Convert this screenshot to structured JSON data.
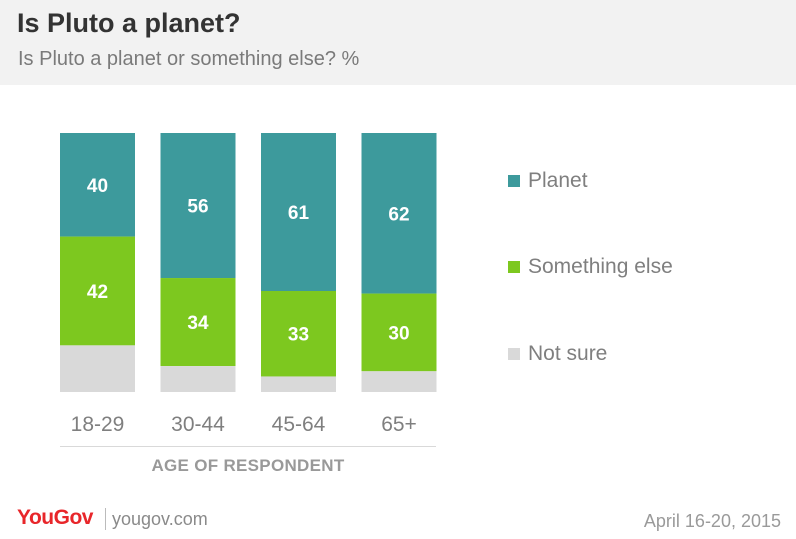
{
  "title": "Is Pluto a planet?",
  "subtitle": "Is Pluto a planet or something else? %",
  "colors": {
    "planet": "#3d9a9c",
    "something_else": "#7dc81f",
    "not_sure": "#d9d9d9",
    "header_bg": "#f2f2f2",
    "brand_red": "#e8262a"
  },
  "chart_data": {
    "type": "bar",
    "stacked": true,
    "categories": [
      "18-29",
      "30-44",
      "45-64",
      "65+"
    ],
    "series": [
      {
        "name": "Planet",
        "values": [
          40,
          56,
          61,
          62
        ],
        "labels": [
          "40",
          "56",
          "61",
          "62"
        ]
      },
      {
        "name": "Something else",
        "values": [
          42,
          34,
          33,
          30
        ],
        "labels": [
          "42",
          "34",
          "33",
          "30"
        ]
      },
      {
        "name": "Not sure",
        "values": [
          18,
          10,
          6,
          8
        ]
      }
    ],
    "xlabel": "AGE OF RESPONDENT",
    "ylim": [
      0,
      100
    ],
    "legend_position": "right",
    "grid": false
  },
  "legend": [
    {
      "label": "Planet"
    },
    {
      "label": "Something else"
    },
    {
      "label": "Not sure"
    }
  ],
  "footer": {
    "logo": "YouGov",
    "url": "yougov.com",
    "date": "April 16-20, 2015"
  }
}
